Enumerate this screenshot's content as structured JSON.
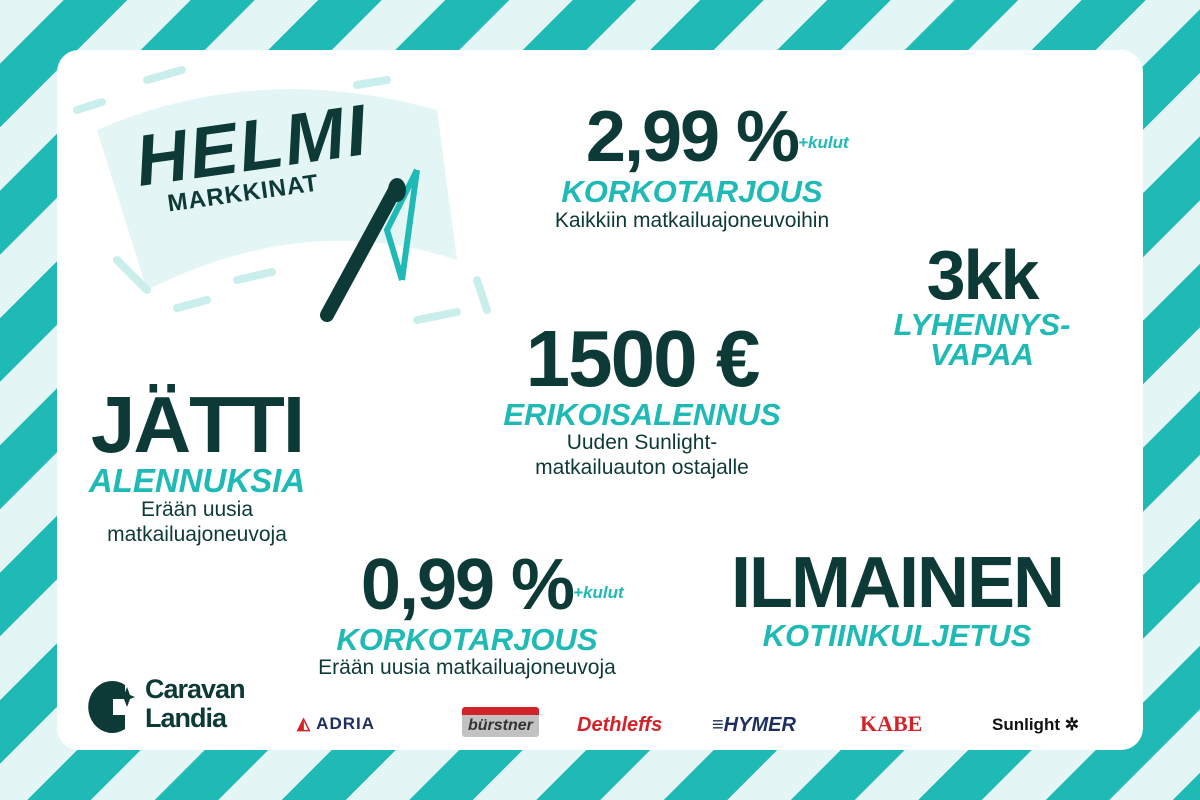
{
  "logo": {
    "title": "HELMI",
    "subtitle": "MARKKINAT"
  },
  "offers": {
    "rate1": {
      "value": "2,99 %",
      "sup": "+kulut",
      "label": "KORKOTARJOUS",
      "desc": "Kaikkiin matkailuajoneuvoihin"
    },
    "defer": {
      "value": "3kk",
      "label1": "LYHENNYS-",
      "label2": "VAPAA"
    },
    "discount": {
      "value": "1500 €",
      "label": "ERIKOISALENNUS",
      "desc1": "Uuden Sunlight-",
      "desc2": "matkailuauton ostajalle"
    },
    "giant": {
      "value": "JÄTTI",
      "label": "ALENNUKSIA",
      "desc1": "Erään uusia",
      "desc2": "matkailuajoneuvoja"
    },
    "rate2": {
      "value": "0,99 %",
      "sup": "+kulut",
      "label": "KORKOTARJOUS",
      "desc": "Erään uusia matkailuajoneuvoja"
    },
    "delivery": {
      "value": "ILMAINEN",
      "label": "KOTIINKULJETUS"
    }
  },
  "company": {
    "line1": "Caravan",
    "line2": "Landia"
  },
  "brands": [
    "ADRIA",
    "bürstner",
    "Dethleffs",
    "HYMER",
    "KABE",
    "Sunlight"
  ],
  "colors": {
    "teal": "#1fbab5",
    "dark": "#0d3a36",
    "light": "#e3f6f5",
    "red": "#d2232a",
    "navy": "#1d2f5e"
  }
}
